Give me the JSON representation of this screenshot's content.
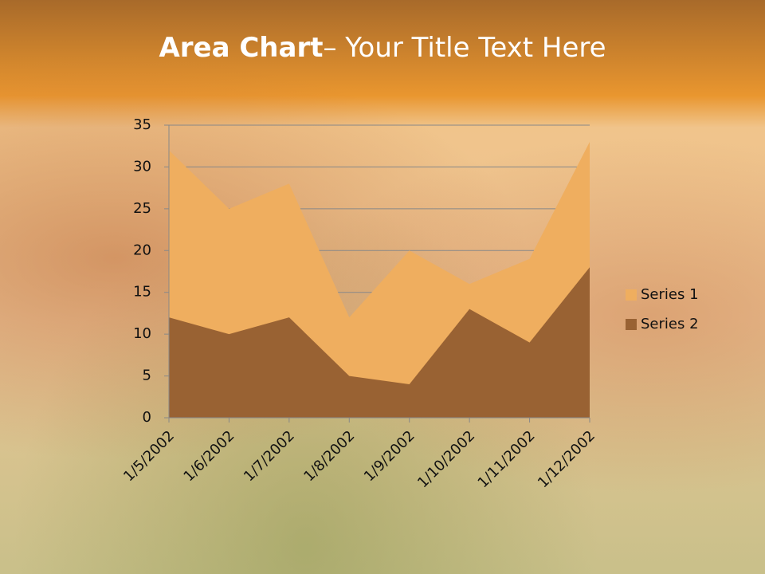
{
  "chart_data": {
    "type": "area",
    "title_parts": [
      "Area Chart",
      "– Your Title Text Here"
    ],
    "categories": [
      "1/5/2002",
      "1/6/2002",
      "1/7/2002",
      "1/8/2002",
      "1/9/2002",
      "1/10/2002",
      "1/11/2002",
      "1/12/2002"
    ],
    "series": [
      {
        "name": "Series 1",
        "color": "#efae5f",
        "values": [
          32,
          25,
          28,
          12,
          20,
          16,
          19,
          33
        ]
      },
      {
        "name": "Series 2",
        "color": "#996233",
        "values": [
          12,
          10,
          12,
          5,
          4,
          13,
          9,
          18
        ]
      }
    ],
    "ylim": [
      0,
      35
    ],
    "yticks": [
      0,
      5,
      10,
      15,
      20,
      25,
      30,
      35
    ],
    "grid": true,
    "legend": "right"
  }
}
